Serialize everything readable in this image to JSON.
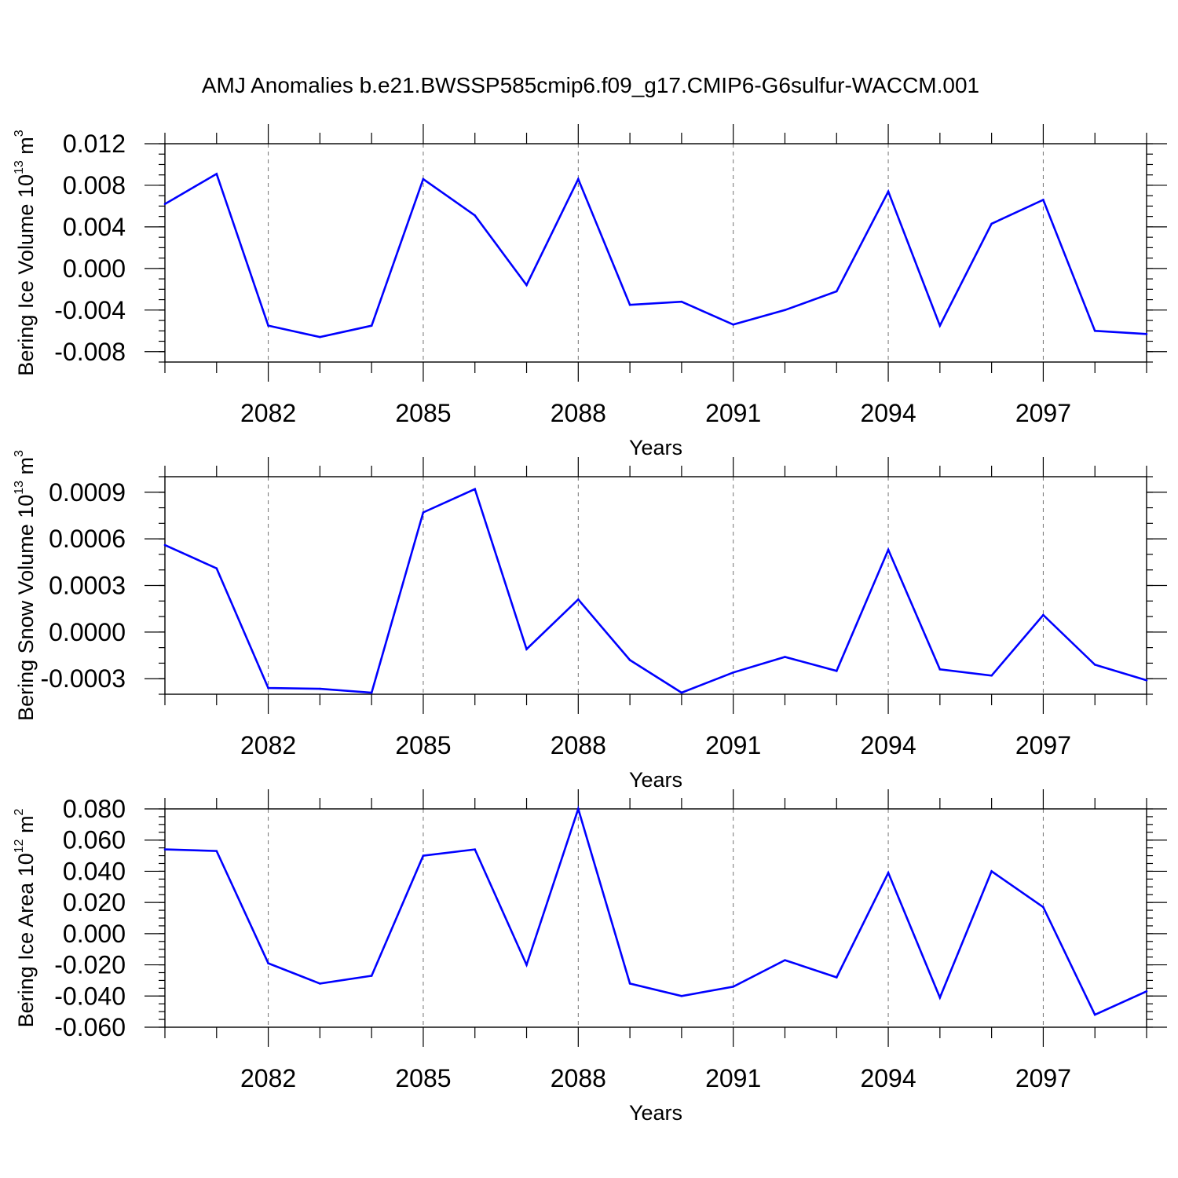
{
  "title": "AMJ Anomalies b.e21.BWSSP585cmip6.f09_g17.CMIP6-G6sulfur-WACCM.001",
  "colors": {
    "line": "#0000ff",
    "axis": "#000000",
    "grid": "#555555"
  },
  "chart_data": [
    {
      "type": "line",
      "xlabel": "Years",
      "ylabel": {
        "text": "Bering Ice Volume 10",
        "sup1": "13",
        "mid": " m",
        "sup2": "3"
      },
      "xlim": [
        2080,
        2099
      ],
      "ylim": [
        -0.009,
        0.012
      ],
      "x_ticks": [
        2082,
        2085,
        2088,
        2091,
        2094,
        2097
      ],
      "x_tick_labels": [
        "2082",
        "2085",
        "2088",
        "2091",
        "2094",
        "2097"
      ],
      "y_ticks": [
        -0.008,
        -0.004,
        0.0,
        0.004,
        0.008,
        0.012
      ],
      "y_tick_labels": [
        "-0.008",
        "-0.004",
        "0.000",
        "0.004",
        "0.008",
        "0.012"
      ],
      "y_minor_step": 0.001,
      "grid": "x-dashed",
      "x": [
        2080,
        2081,
        2082,
        2083,
        2084,
        2085,
        2086,
        2087,
        2088,
        2089,
        2090,
        2091,
        2092,
        2093,
        2094,
        2095,
        2096,
        2097,
        2098,
        2099
      ],
      "values": [
        0.0062,
        0.0091,
        -0.0055,
        -0.0066,
        -0.0055,
        0.0086,
        0.0051,
        -0.0016,
        0.0086,
        -0.0035,
        -0.0032,
        -0.0054,
        -0.004,
        -0.0022,
        0.0074,
        -0.0055,
        0.0043,
        0.0066,
        -0.006,
        -0.0063
      ]
    },
    {
      "type": "line",
      "xlabel": "Years",
      "ylabel": {
        "text": "Bering Snow Volume 10",
        "sup1": "13",
        "mid": " m",
        "sup2": "3"
      },
      "xlim": [
        2080,
        2099
      ],
      "ylim": [
        -0.0004,
        0.001
      ],
      "x_ticks": [
        2082,
        2085,
        2088,
        2091,
        2094,
        2097
      ],
      "x_tick_labels": [
        "2082",
        "2085",
        "2088",
        "2091",
        "2094",
        "2097"
      ],
      "y_ticks": [
        -0.0003,
        0.0,
        0.0003,
        0.0006,
        0.0009
      ],
      "y_tick_labels": [
        "-0.0003",
        "0.0000",
        "0.0003",
        "0.0006",
        "0.0009"
      ],
      "y_minor_step": 0.0001,
      "grid": "x-dashed",
      "x": [
        2080,
        2081,
        2082,
        2083,
        2084,
        2085,
        2086,
        2087,
        2088,
        2089,
        2090,
        2091,
        2092,
        2093,
        2094,
        2095,
        2096,
        2097,
        2098,
        2099
      ],
      "values": [
        0.00056,
        0.00041,
        -0.00036,
        -0.000365,
        -0.00039,
        0.00077,
        0.00092,
        -0.00011,
        0.00021,
        -0.00018,
        -0.00039,
        -0.00026,
        -0.00016,
        -0.00025,
        0.00053,
        -0.00024,
        -0.00028,
        0.00011,
        -0.00021,
        -0.00031
      ]
    },
    {
      "type": "line",
      "xlabel": "Years",
      "ylabel": {
        "text": "Bering Ice Area 10",
        "sup1": "12",
        "mid": " m",
        "sup2": "2"
      },
      "xlim": [
        2080,
        2099
      ],
      "ylim": [
        -0.06,
        0.08
      ],
      "x_ticks": [
        2082,
        2085,
        2088,
        2091,
        2094,
        2097
      ],
      "x_tick_labels": [
        "2082",
        "2085",
        "2088",
        "2091",
        "2094",
        "2097"
      ],
      "y_ticks": [
        -0.06,
        -0.04,
        -0.02,
        0.0,
        0.02,
        0.04,
        0.06,
        0.08
      ],
      "y_tick_labels": [
        "-0.060",
        "-0.040",
        "-0.020",
        "0.000",
        "0.020",
        "0.040",
        "0.060",
        "0.080"
      ],
      "y_minor_step": 0.005,
      "grid": "x-dashed",
      "x": [
        2080,
        2081,
        2082,
        2083,
        2084,
        2085,
        2086,
        2087,
        2088,
        2089,
        2090,
        2091,
        2092,
        2093,
        2094,
        2095,
        2096,
        2097,
        2098,
        2099
      ],
      "values": [
        0.054,
        0.053,
        -0.019,
        -0.032,
        -0.027,
        0.05,
        0.054,
        -0.02,
        0.08,
        -0.032,
        -0.04,
        -0.034,
        -0.017,
        -0.028,
        0.039,
        -0.041,
        0.04,
        0.017,
        -0.052,
        -0.037
      ]
    }
  ]
}
